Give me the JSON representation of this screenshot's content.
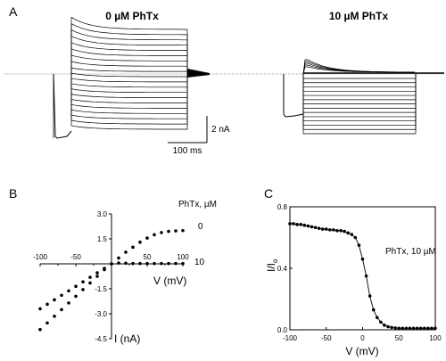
{
  "panel_a": {
    "letter": "A",
    "left_title": "0 µM PhTx",
    "right_title": "10 µM PhTx",
    "scale_current": "2 nA",
    "scale_time": "100 ms"
  },
  "panel_b": {
    "letter": "B",
    "legend_title": "PhTx, µM",
    "series_label_0": "0",
    "series_label_10": "10",
    "x_axis_label": "V (mV)",
    "y_axis_label": "I (nA)"
  },
  "panel_c": {
    "letter": "C",
    "annotation": "PhTx, 10 µM",
    "x_axis_label": "V (mV)",
    "y_axis_label": "I/I",
    "y_axis_subscript": "o"
  },
  "chart_data": [
    {
      "type": "scatter",
      "panel": "B",
      "xlabel": "V (mV)",
      "ylabel": "I (nA)",
      "xlim": [
        -100,
        100
      ],
      "ylim": [
        -4.5,
        3.0
      ],
      "x_ticks": [
        "-100",
        "-50",
        "50",
        "100"
      ],
      "y_ticks": [
        "3.0",
        "1.5",
        "-1.5",
        "-3.0",
        "-4.5"
      ],
      "series": [
        {
          "name": "0",
          "x": [
            -100,
            -90,
            -80,
            -70,
            -60,
            -50,
            -40,
            -30,
            -20,
            -10,
            0,
            10,
            20,
            30,
            40,
            50,
            60,
            70,
            80,
            90,
            100
          ],
          "y": [
            -3.95,
            -3.55,
            -3.15,
            -2.75,
            -2.35,
            -1.95,
            -1.55,
            -1.15,
            -0.75,
            -0.35,
            0.0,
            0.35,
            0.7,
            1.0,
            1.3,
            1.55,
            1.75,
            1.88,
            1.95,
            1.98,
            2.0
          ]
        },
        {
          "name": "10",
          "x": [
            -100,
            -90,
            -80,
            -70,
            -60,
            -50,
            -40,
            -30,
            -20,
            -10,
            0,
            10,
            20,
            30,
            40,
            50,
            60,
            70,
            80,
            90,
            100
          ],
          "y": [
            -2.7,
            -2.43,
            -2.16,
            -1.89,
            -1.62,
            -1.35,
            -1.08,
            -0.81,
            -0.54,
            -0.27,
            0.0,
            0.05,
            0.04,
            0.02,
            0.02,
            0.02,
            0.02,
            0.02,
            0.02,
            0.02,
            0.02
          ]
        }
      ]
    },
    {
      "type": "scatter",
      "panel": "C",
      "xlabel": "V (mV)",
      "ylabel": "I/Io",
      "xlim": [
        -100,
        100
      ],
      "ylim": [
        0.0,
        0.8
      ],
      "x_ticks": [
        "-100",
        "-50",
        "0",
        "50",
        "100"
      ],
      "y_ticks": [
        "0.8",
        "0.4",
        "0.0"
      ],
      "series": [
        {
          "name": "",
          "x": [
            -100,
            -95,
            -90,
            -85,
            -80,
            -75,
            -70,
            -65,
            -60,
            -55,
            -50,
            -45,
            -40,
            -35,
            -30,
            -25,
            -20,
            -15,
            -10,
            -5,
            0,
            5,
            10,
            15,
            20,
            25,
            30,
            35,
            40,
            45,
            50,
            55,
            60,
            65,
            70,
            75,
            80,
            85,
            90,
            95,
            100
          ],
          "y": [
            0.69,
            0.69,
            0.685,
            0.685,
            0.68,
            0.675,
            0.67,
            0.665,
            0.66,
            0.655,
            0.655,
            0.65,
            0.65,
            0.645,
            0.645,
            0.64,
            0.63,
            0.62,
            0.6,
            0.55,
            0.46,
            0.35,
            0.22,
            0.13,
            0.08,
            0.05,
            0.03,
            0.02,
            0.015,
            0.012,
            0.01,
            0.01,
            0.01,
            0.01,
            0.01,
            0.01,
            0.01,
            0.01,
            0.01,
            0.01,
            0.01
          ]
        }
      ]
    }
  ]
}
